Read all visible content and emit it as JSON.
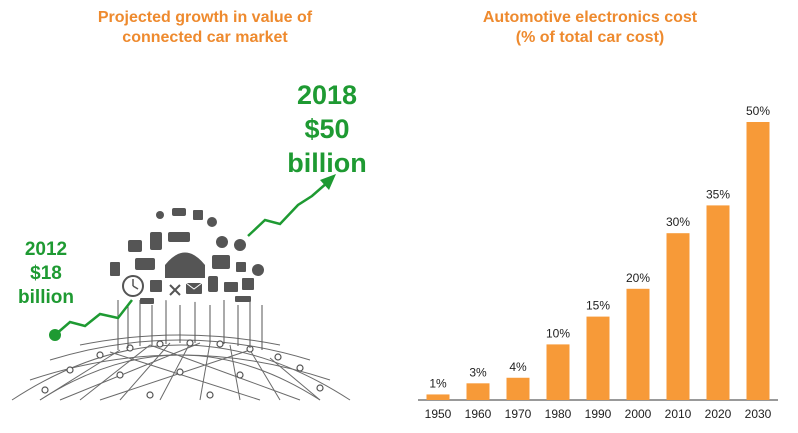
{
  "left_panel": {
    "title_line1": "Projected growth in value of",
    "title_line2": "connected car market",
    "label_2018": {
      "year": "2018",
      "amount": "$50",
      "unit": "billion"
    },
    "label_2012": {
      "year": "2012",
      "amount": "$18",
      "unit": "billion"
    },
    "accent_color": "#1e9a32",
    "icons": [
      "car-icon",
      "wifi-icon",
      "clock-icon",
      "phone-icon",
      "chat-bubble-icon",
      "envelope-icon",
      "battery-icon",
      "speaker-icon",
      "camera-icon",
      "tools-icon"
    ]
  },
  "chart_data": {
    "type": "bar",
    "title": "Automotive electronics cost (% of total car cost)",
    "title_line1": "Automotive electronics cost",
    "title_line2": "(% of total car cost)",
    "categories": [
      "1950",
      "1960",
      "1970",
      "1980",
      "1990",
      "2000",
      "2010",
      "2020",
      "2030"
    ],
    "values": [
      1,
      3,
      4,
      10,
      15,
      20,
      30,
      35,
      50
    ],
    "data_labels": [
      "1%",
      "3%",
      "4%",
      "10%",
      "15%",
      "20%",
      "30%",
      "35%",
      "50%"
    ],
    "xlabel": "",
    "ylabel": "",
    "ylim": [
      0,
      50
    ],
    "grid": false,
    "legend": "none",
    "bar_color": "#f79a38",
    "title_color": "#ee8a2e"
  }
}
